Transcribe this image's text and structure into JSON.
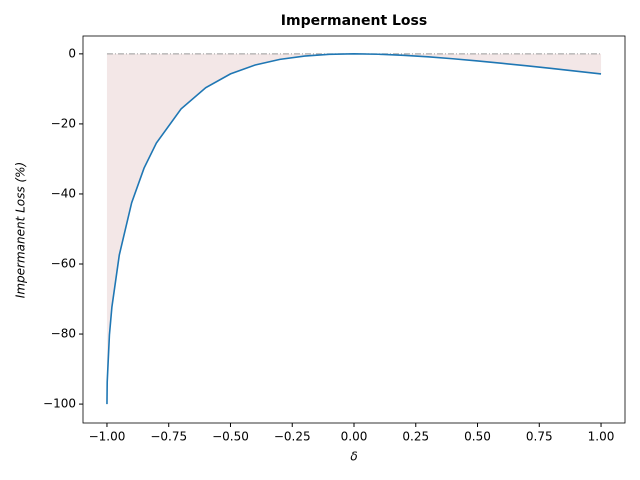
{
  "chart_data": {
    "type": "line",
    "title": "Impermanent Loss",
    "xlabel": "δ",
    "ylabel": "Impermanent Loss (%)",
    "x": [
      -1,
      -0.999,
      -0.99,
      -0.98,
      -0.95,
      -0.9,
      -0.85,
      -0.8,
      -0.7,
      -0.6,
      -0.5,
      -0.4,
      -0.3,
      -0.2,
      -0.1,
      0,
      0.1,
      0.2,
      0.3,
      0.4,
      0.5,
      0.6,
      0.7,
      0.8,
      0.9,
      1.0
    ],
    "series": [
      {
        "color": "#1f77b4",
        "fill_color": "#f3e7e7",
        "values": [
          -100,
          -93.68,
          -80.2,
          -72.27,
          -57.41,
          -42.5,
          -32.64,
          -25.46,
          -15.73,
          -9.65,
          -5.72,
          -3.18,
          -1.57,
          -0.62,
          -0.14,
          0,
          -0.11,
          -0.41,
          -0.85,
          -1.4,
          -2.02,
          -2.7,
          -3.42,
          -4.17,
          -4.94,
          -5.72
        ]
      }
    ],
    "xlim": [
      -1.097,
      1.097
    ],
    "ylim": [
      -105.4,
      5.1
    ],
    "xticks": [
      {
        "value": -1,
        "label": "−1.00"
      },
      {
        "value": -0.75,
        "label": "−0.75"
      },
      {
        "value": -0.5,
        "label": "−0.50"
      },
      {
        "value": -0.25,
        "label": "−0.25"
      },
      {
        "value": 0,
        "label": "0.00"
      },
      {
        "value": 0.25,
        "label": "0.25"
      },
      {
        "value": 0.5,
        "label": "0.50"
      },
      {
        "value": 0.75,
        "label": "0.75"
      },
      {
        "value": 1,
        "label": "1.00"
      }
    ],
    "yticks": [
      {
        "value": -100,
        "label": "−100"
      },
      {
        "value": -80,
        "label": "−80"
      },
      {
        "value": -60,
        "label": "−60"
      },
      {
        "value": -40,
        "label": "−40"
      },
      {
        "value": -20,
        "label": "−20"
      },
      0
    ],
    "reference_line": 0
  }
}
